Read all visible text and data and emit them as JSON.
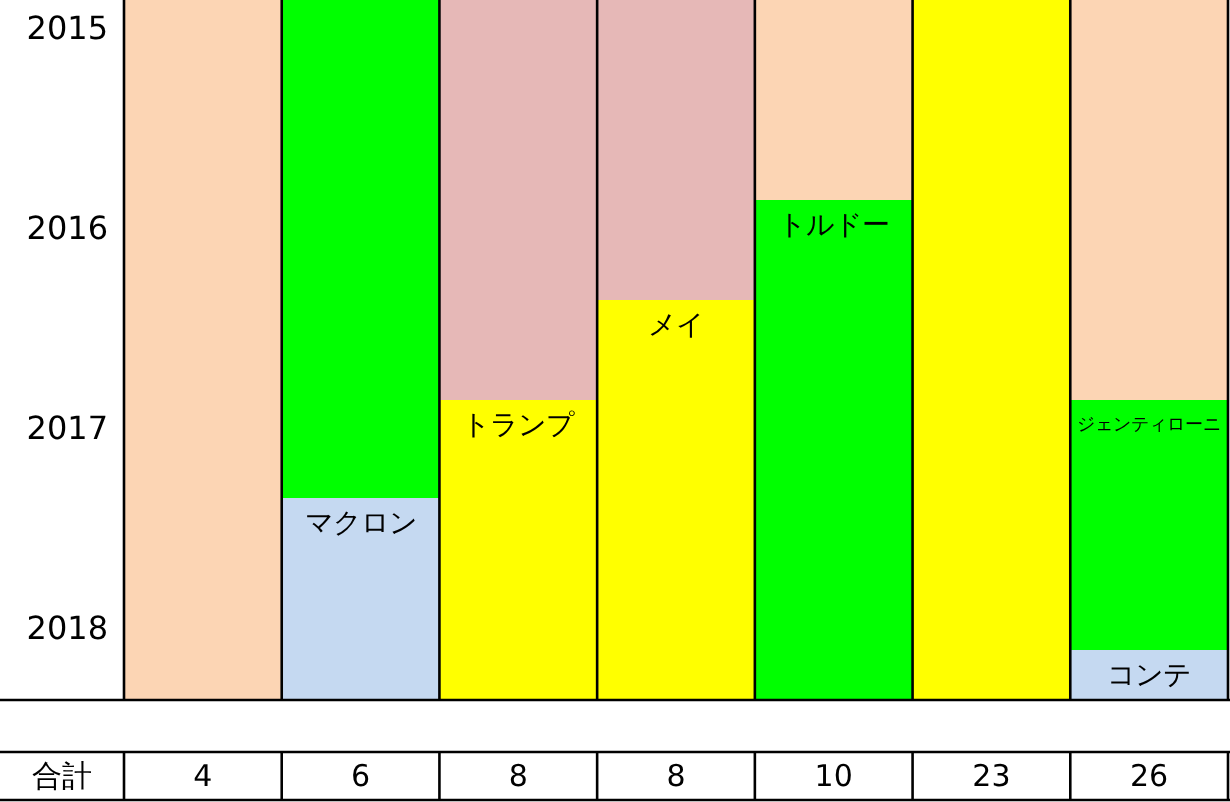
{
  "chart_data": {
    "type": "bar",
    "categories": [
      "4",
      "6",
      "8",
      "8",
      "10",
      "23",
      "26"
    ],
    "xlabel": "合計",
    "ylim": [
      2018.36,
      2014.86
    ],
    "yticks": [
      2015,
      2016,
      2017,
      2018
    ],
    "grid": false,
    "series": [
      {
        "colors": [
          "#fcd5b4",
          "#00ff00",
          "#e6b8b7",
          "#e6b8b7",
          "#fcd5b4",
          "#ffff00",
          "#fcd5b4"
        ],
        "values": [
          3.5,
          2.49,
          2.0,
          1.5,
          1.0,
          3.5,
          2.0
        ],
        "base": [
          2014.86,
          2014.86,
          2014.86,
          2014.86,
          2014.86,
          2014.86,
          2014.86
        ]
      },
      {
        "name": "マクロン",
        "color": "#c5d9f1",
        "values": [
          null,
          1.01,
          null,
          null,
          null,
          null,
          null
        ],
        "base": [
          null,
          2017.35,
          null,
          null,
          null,
          null,
          null
        ]
      },
      {
        "name": "トランプ",
        "color": "#ffff00",
        "values": [
          null,
          null,
          1.5,
          null,
          null,
          null,
          null
        ],
        "base": [
          null,
          null,
          2016.86,
          null,
          null,
          null,
          null
        ]
      },
      {
        "name": "メイ",
        "color": "#ffff00",
        "values": [
          null,
          null,
          null,
          2.0,
          null,
          null,
          null
        ],
        "base": [
          null,
          null,
          null,
          2016.36,
          null,
          null,
          null
        ]
      },
      {
        "name": "トルドー",
        "color": "#00ff00",
        "values": [
          null,
          null,
          null,
          null,
          2.5,
          null,
          null
        ],
        "base": [
          null,
          null,
          null,
          null,
          2015.86,
          null,
          null
        ]
      },
      {
        "name": "ジェンティローニ",
        "color": "#00ff00",
        "values": [
          null,
          null,
          null,
          null,
          null,
          null,
          1.25
        ],
        "base": [
          null,
          null,
          null,
          null,
          null,
          null,
          2016.86
        ]
      },
      {
        "name": "コンテ",
        "color": "#c5d9f1",
        "values": [
          null,
          null,
          null,
          null,
          null,
          null,
          0.25
        ],
        "base": [
          null,
          null,
          null,
          null,
          null,
          null,
          2018.11
        ]
      }
    ]
  }
}
